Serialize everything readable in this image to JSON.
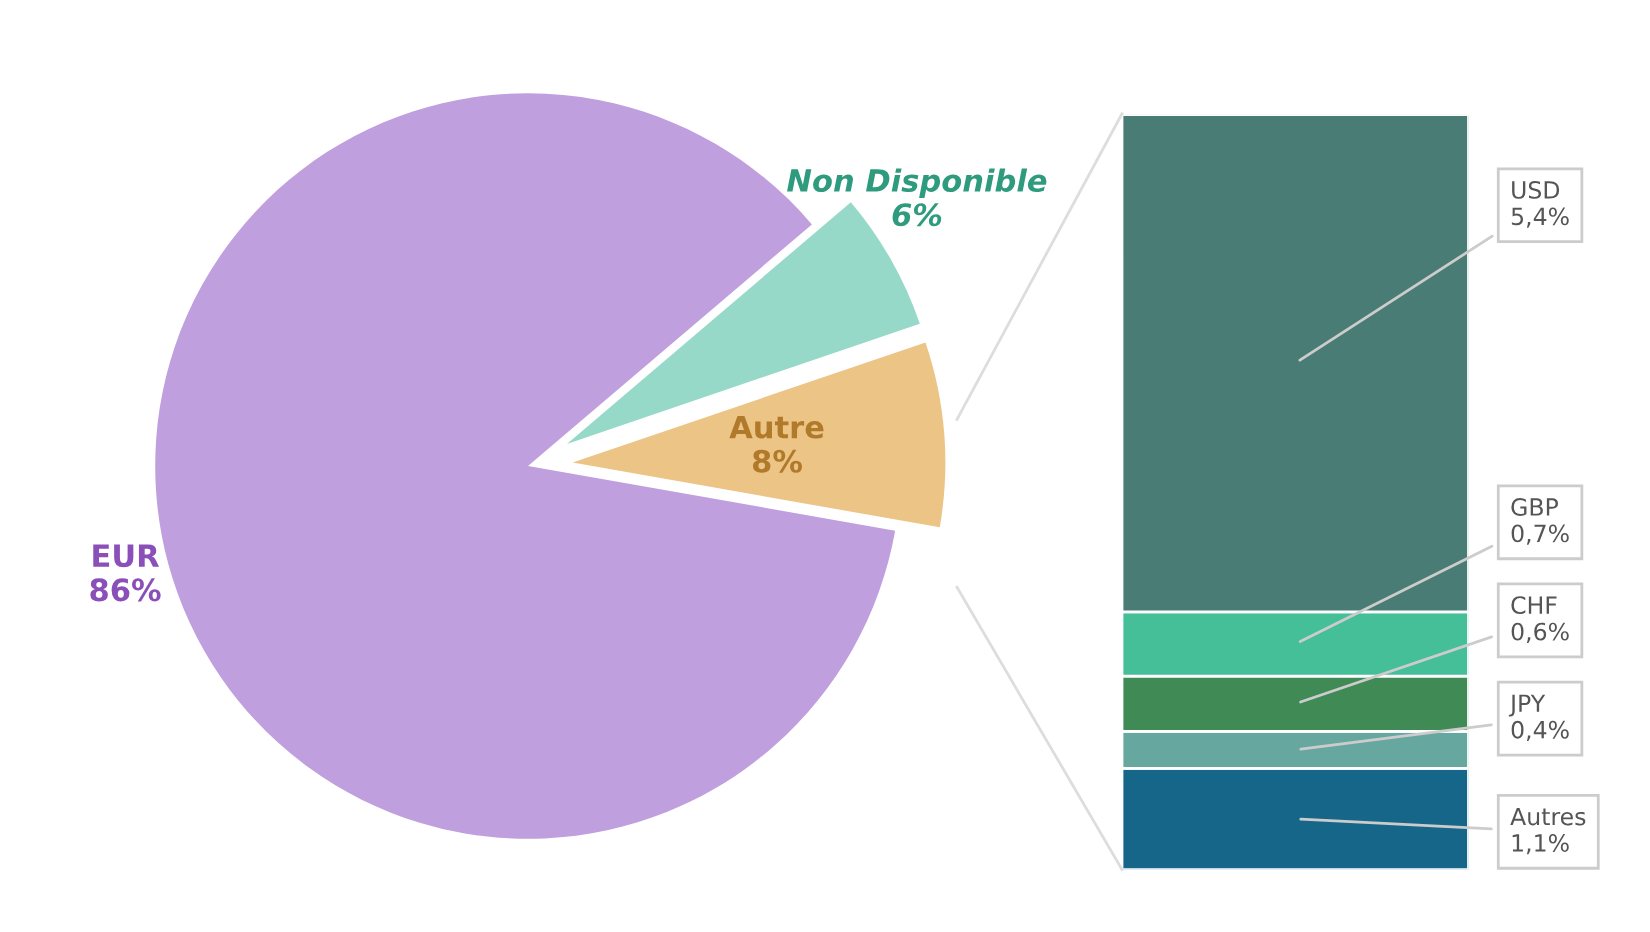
{
  "chart_data": [
    {
      "type": "pie",
      "categories": [
        "Autre",
        "Non Disponible",
        "EUR"
      ],
      "values": [
        8,
        6,
        86
      ],
      "colors": [
        "#ecc486",
        "#97d9c8",
        "#c09fdf"
      ],
      "value_labels": [
        "8%",
        "6%",
        "86%"
      ]
    },
    {
      "type": "bar",
      "stacked": true,
      "categories": [
        null
      ],
      "series": [
        {
          "name": "Autres",
          "color": "#156689",
          "values": [
            1.1
          ],
          "value_labels": [
            "1,1%"
          ]
        },
        {
          "name": "JPY",
          "color": "#66a8a0",
          "values": [
            0.4
          ],
          "value_labels": [
            "0,4%"
          ]
        },
        {
          "name": "CHF",
          "color": "#3f8a55",
          "values": [
            0.6
          ],
          "value_labels": [
            "0,6%"
          ]
        },
        {
          "name": "GBP",
          "color": "#45bf98",
          "values": [
            0.7
          ],
          "value_labels": [
            "0,7%"
          ]
        },
        {
          "name": "USD",
          "color": "#4a7c76",
          "values": [
            5.4
          ],
          "value_labels": [
            "5,4%"
          ]
        }
      ]
    }
  ]
}
